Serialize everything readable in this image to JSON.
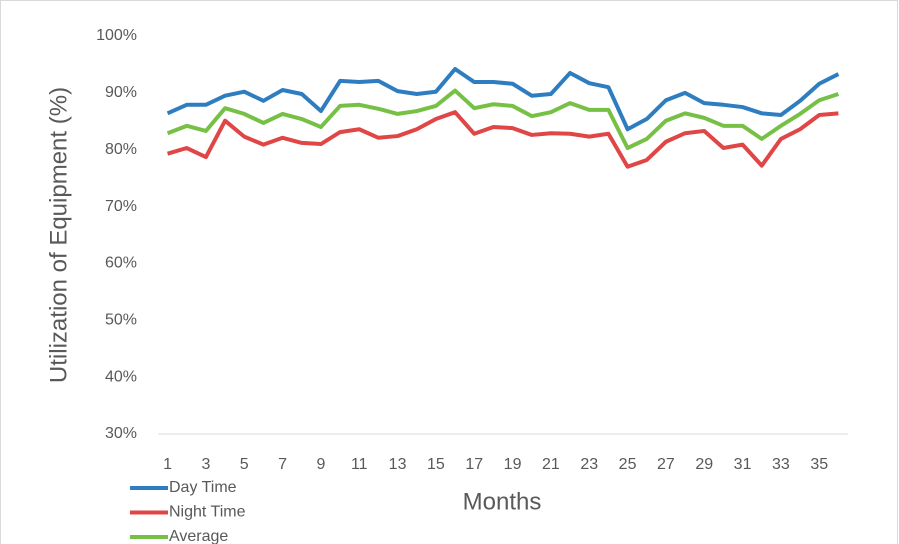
{
  "chart_data": {
    "type": "line",
    "x_label": "Months",
    "y_label": "Utilization of Equipment (%)",
    "categories": [
      1,
      null,
      3,
      null,
      5,
      null,
      7,
      null,
      9,
      null,
      11,
      null,
      13,
      null,
      15,
      null,
      17,
      null,
      19,
      null,
      21,
      null,
      23,
      null,
      25,
      null,
      27,
      null,
      29,
      null,
      31,
      null,
      33,
      null,
      35,
      null
    ],
    "series": [
      {
        "name": "Day Time",
        "color": "#2e7dc0",
        "values": [
          86.4,
          87.9,
          87.9,
          89.5,
          90.2,
          88.6,
          90.5,
          89.8,
          86.8,
          92.1,
          91.9,
          92.1,
          90.3,
          89.8,
          90.2,
          94.2,
          91.9,
          91.9,
          91.6,
          89.5,
          89.8,
          93.5,
          91.7,
          91.0,
          83.6,
          85.4,
          88.7,
          90.0,
          88.2,
          87.9,
          87.5,
          86.4,
          86.1,
          88.6,
          91.6,
          93.3
        ]
      },
      {
        "name": "Night Time",
        "color": "#e04646",
        "values": [
          79.3,
          80.3,
          78.7,
          85.1,
          82.3,
          80.9,
          82.1,
          81.2,
          81.0,
          83.1,
          83.6,
          82.1,
          82.4,
          83.6,
          85.4,
          86.6,
          82.8,
          84.0,
          83.8,
          82.6,
          82.9,
          82.8,
          82.3,
          82.8,
          77.0,
          78.2,
          81.4,
          82.9,
          83.3,
          80.3,
          80.9,
          77.2,
          81.9,
          83.6,
          86.1,
          86.4
        ]
      },
      {
        "name": "Average",
        "color": "#77c046",
        "values": [
          82.9,
          84.2,
          83.3,
          87.3,
          86.3,
          84.7,
          86.3,
          85.4,
          84.0,
          87.7,
          87.9,
          87.2,
          86.3,
          86.8,
          87.7,
          90.4,
          87.3,
          88.0,
          87.7,
          85.9,
          86.6,
          88.2,
          87.0,
          87.0,
          80.3,
          81.9,
          85.1,
          86.4,
          85.6,
          84.2,
          84.2,
          81.9,
          84.2,
          86.3,
          88.7,
          89.8
        ]
      }
    ],
    "ylim": [
      30,
      100
    ],
    "yticks": [
      {
        "value": 30,
        "label": "30%"
      },
      {
        "value": 40,
        "label": "40%"
      },
      {
        "value": 50,
        "label": "50%"
      },
      {
        "value": 60,
        "label": "60%"
      },
      {
        "value": 70,
        "label": "70%"
      },
      {
        "value": 80,
        "label": "80%"
      },
      {
        "value": 90,
        "label": "90%"
      },
      {
        "value": 100,
        "label": "100%"
      }
    ],
    "grid": false,
    "legend": "bottom-left"
  }
}
